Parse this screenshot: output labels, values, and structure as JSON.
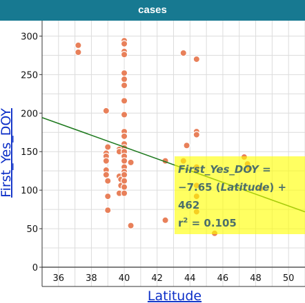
{
  "window": {
    "title": "cases"
  },
  "chart_data": {
    "type": "scatter",
    "title": "",
    "xlabel": "Latitude",
    "ylabel": "First_Yes_DOY",
    "xlim": [
      35,
      51
    ],
    "ylim": [
      -25,
      320
    ],
    "x_ticks": [
      36,
      38,
      40,
      42,
      44,
      46,
      48,
      50
    ],
    "y_ticks": [
      0,
      50,
      100,
      150,
      200,
      250,
      300
    ],
    "grid": true,
    "point_color": "#e8805a",
    "line_color": "#1f7a1f",
    "points": [
      [
        37.2,
        288
      ],
      [
        37.2,
        279
      ],
      [
        38.9,
        203
      ],
      [
        38.9,
        148
      ],
      [
        38.9,
        144
      ],
      [
        38.9,
        138
      ],
      [
        38.9,
        126
      ],
      [
        38.9,
        120
      ],
      [
        39.0,
        156
      ],
      [
        39.0,
        112
      ],
      [
        39.0,
        92
      ],
      [
        39.0,
        74
      ],
      [
        39.7,
        153
      ],
      [
        39.7,
        150
      ],
      [
        39.7,
        118
      ],
      [
        39.7,
        96
      ],
      [
        39.8,
        114
      ],
      [
        39.8,
        106
      ],
      [
        40.0,
        294
      ],
      [
        40.0,
        290
      ],
      [
        40.0,
        280
      ],
      [
        40.0,
        276
      ],
      [
        40.0,
        252
      ],
      [
        40.0,
        244
      ],
      [
        40.0,
        236
      ],
      [
        40.0,
        216
      ],
      [
        40.0,
        198
      ],
      [
        40.0,
        176
      ],
      [
        40.0,
        170
      ],
      [
        40.0,
        160
      ],
      [
        40.0,
        155
      ],
      [
        40.0,
        150
      ],
      [
        40.0,
        144
      ],
      [
        40.0,
        138
      ],
      [
        40.0,
        130
      ],
      [
        40.0,
        124
      ],
      [
        40.0,
        120
      ],
      [
        40.0,
        112
      ],
      [
        40.0,
        104
      ],
      [
        40.0,
        96
      ],
      [
        40.4,
        136
      ],
      [
        40.4,
        54
      ],
      [
        42.5,
        138
      ],
      [
        42.5,
        61
      ],
      [
        43.6,
        278
      ],
      [
        43.6,
        138
      ],
      [
        43.8,
        158
      ],
      [
        44.4,
        270
      ],
      [
        44.4,
        176
      ],
      [
        44.4,
        172
      ],
      [
        44.4,
        130
      ],
      [
        44.4,
        125
      ],
      [
        44.4,
        106
      ],
      [
        44.4,
        92
      ],
      [
        44.4,
        72
      ],
      [
        45.5,
        44
      ],
      [
        47.3,
        143
      ],
      [
        47.5,
        134
      ],
      [
        47.6,
        128
      ],
      [
        48.3,
        102
      ]
    ],
    "fit": {
      "slope": -7.65,
      "intercept": 462,
      "r_squared": 0.105,
      "equation_parts": {
        "lhs": "First_Yes_DOY =",
        "coef": "−7.65 (",
        "var": "Latitude",
        "coef_end": ") +",
        "intercept": "462",
        "r2_label": "r",
        "r2_sup": "2",
        "r2_value": " = 0.105"
      }
    }
  }
}
